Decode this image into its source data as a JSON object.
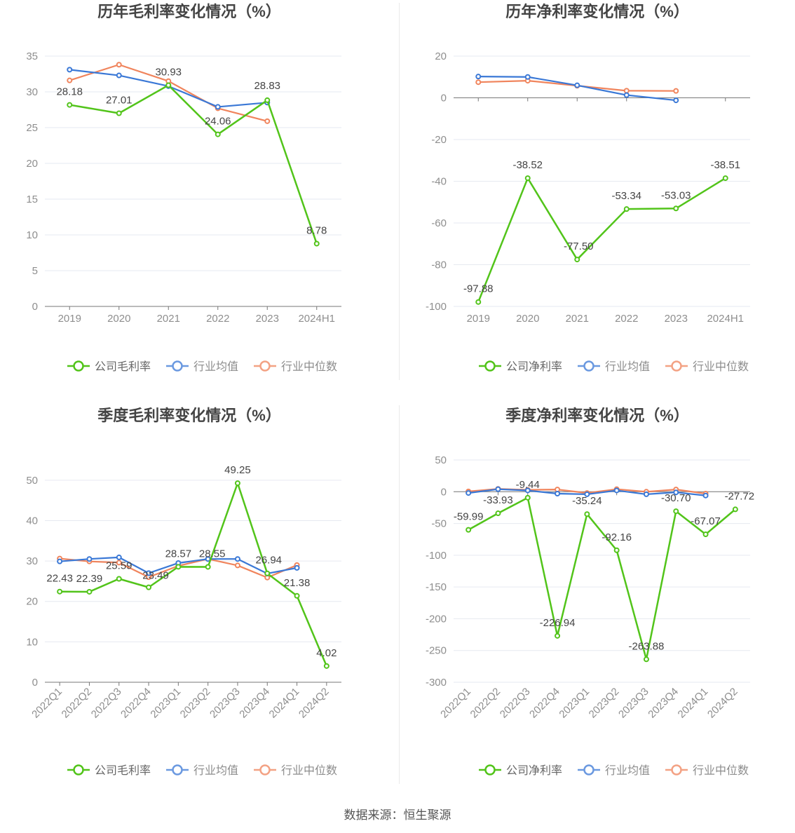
{
  "source_note": "数据来源：恒生聚源",
  "colors": {
    "company": "#52c41a",
    "industry_avg": "#3a78d6",
    "industry_median": "#f0845c",
    "grid": "#e6e9f0",
    "axis": "#777777"
  },
  "chart_data": [
    {
      "type": "line",
      "title": "历年毛利率变化情况（%）",
      "categories": [
        "2019",
        "2020",
        "2021",
        "2022",
        "2023",
        "2024H1"
      ],
      "ylim": [
        0,
        35
      ],
      "yticks": [
        0,
        5,
        10,
        15,
        20,
        25,
        30,
        35
      ],
      "grid": true,
      "legend_position": "bottom",
      "series": [
        {
          "name": "公司毛利率",
          "key": "company",
          "values": [
            28.18,
            27.01,
            30.93,
            24.06,
            28.83,
            8.78
          ],
          "labels": [
            "28.18",
            "27.01",
            "30.93",
            "24.06",
            "28.83",
            "8.78"
          ]
        },
        {
          "name": "行业均值",
          "key": "industry_avg",
          "values": [
            33.1,
            32.3,
            30.8,
            27.9,
            28.5,
            null
          ]
        },
        {
          "name": "行业中位数",
          "key": "industry_median",
          "values": [
            31.6,
            33.8,
            31.5,
            27.7,
            25.9,
            null
          ]
        }
      ]
    },
    {
      "type": "line",
      "title": "历年净利率变化情况（%）",
      "categories": [
        "2019",
        "2020",
        "2021",
        "2022",
        "2023",
        "2024H1"
      ],
      "ylim": [
        -100,
        20
      ],
      "yticks": [
        -100,
        -80,
        -60,
        -40,
        -20,
        0,
        20
      ],
      "grid": true,
      "legend_position": "bottom",
      "series": [
        {
          "name": "公司净利率",
          "key": "company",
          "values": [
            -97.88,
            -38.52,
            -77.5,
            -53.34,
            -53.03,
            -38.51
          ],
          "labels": [
            "-97.88",
            "-38.52",
            "-77.50",
            "-53.34",
            "-53.03",
            "-38.51"
          ]
        },
        {
          "name": "行业均值",
          "key": "industry_avg",
          "values": [
            10.2,
            10.0,
            6.0,
            1.3,
            -1.2,
            null
          ]
        },
        {
          "name": "行业中位数",
          "key": "industry_median",
          "values": [
            7.5,
            8.2,
            5.8,
            3.4,
            3.3,
            null
          ]
        }
      ]
    },
    {
      "type": "line",
      "title": "季度毛利率变化情况（%）",
      "categories": [
        "2022Q1",
        "2022Q2",
        "2022Q3",
        "2022Q4",
        "2023Q1",
        "2023Q2",
        "2023Q3",
        "2023Q4",
        "2024Q1",
        "2024Q2"
      ],
      "ylim": [
        0,
        55
      ],
      "yticks": [
        0,
        10,
        20,
        30,
        40,
        50
      ],
      "grid": true,
      "legend_position": "bottom",
      "rotate_x_labels": true,
      "series": [
        {
          "name": "公司毛利率",
          "key": "company",
          "values": [
            22.43,
            22.39,
            25.59,
            23.49,
            28.57,
            28.55,
            49.25,
            26.94,
            21.38,
            4.02
          ],
          "labels": [
            "22.43",
            "22.39",
            "25.59",
            "23.49",
            "28.57",
            "28.55",
            "49.25",
            "26.94",
            "21.38",
            "4.02"
          ]
        },
        {
          "name": "行业均值",
          "key": "industry_avg",
          "values": [
            29.9,
            30.5,
            30.9,
            27.0,
            29.5,
            30.5,
            30.5,
            26.9,
            28.3,
            null
          ]
        },
        {
          "name": "行业中位数",
          "key": "industry_median",
          "values": [
            30.6,
            29.9,
            29.6,
            26.0,
            28.8,
            30.5,
            28.9,
            25.9,
            29.0,
            null
          ]
        }
      ]
    },
    {
      "type": "line",
      "title": "季度净利率变化情况（%）",
      "categories": [
        "2022Q1",
        "2022Q2",
        "2022Q3",
        "2022Q4",
        "2023Q1",
        "2023Q2",
        "2023Q3",
        "2023Q4",
        "2024Q1",
        "2024Q2"
      ],
      "ylim": [
        -300,
        50
      ],
      "yticks": [
        -300,
        -250,
        -200,
        -150,
        -100,
        -50,
        0,
        50
      ],
      "grid": true,
      "legend_position": "bottom",
      "rotate_x_labels": true,
      "series": [
        {
          "name": "公司净利率",
          "key": "company",
          "values": [
            -59.99,
            -33.93,
            -9.44,
            -226.94,
            -35.24,
            -92.16,
            -263.88,
            -30.7,
            -67.07,
            -27.72
          ],
          "labels": [
            "-59.99",
            "-33.93",
            "-9.44",
            "-226.94",
            "-35.24",
            "-92.16",
            "-263.88",
            "-30.70",
            "-67.07",
            "-27.72"
          ]
        },
        {
          "name": "行业均值",
          "key": "industry_avg",
          "values": [
            -2.0,
            4.0,
            2.0,
            -3.0,
            -4.0,
            2.0,
            -4.0,
            -1.0,
            -6.0,
            null
          ]
        },
        {
          "name": "行业中位数",
          "key": "industry_median",
          "values": [
            0.5,
            4.5,
            3.0,
            3.5,
            -2.0,
            4.0,
            0.0,
            3.5,
            -3.0,
            null
          ]
        }
      ]
    }
  ]
}
